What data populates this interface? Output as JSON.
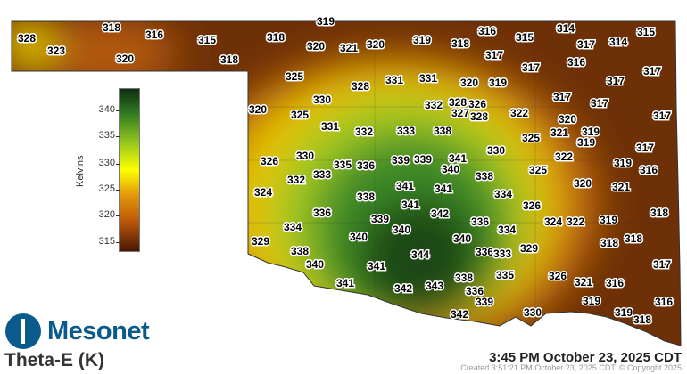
{
  "title": "Theta-E (K)",
  "logo_text": "Mesonet",
  "timestamp": "3:45 PM October 23, 2025 CDT",
  "created": "Created 3:51:21 PM October 23, 2025 CDT. © Copyright 2025",
  "colorbar": {
    "label": "Kelvins",
    "ticks": [
      "340",
      "335",
      "330",
      "325",
      "320",
      "315"
    ],
    "colors": [
      "#0f2e0f",
      "#2f7a22",
      "#8fc21e",
      "#ffff00",
      "#e39a0c",
      "#c25e0a",
      "#4a1604"
    ]
  },
  "stations": [
    "328",
    "323",
    "318",
    "316",
    "315",
    "320",
    "318",
    "319",
    "318",
    "320",
    "321",
    "320",
    "319",
    "318",
    "316",
    "315",
    "314",
    "317",
    "314",
    "315",
    "317",
    "317",
    "316",
    "317",
    "317",
    "325",
    "330",
    "328",
    "331",
    "331",
    "320",
    "319",
    "317",
    "317",
    "317",
    "320",
    "325",
    "331",
    "332",
    "333",
    "338",
    "332",
    "328",
    "326",
    "327",
    "328",
    "322",
    "320",
    "321",
    "319",
    "319",
    "325",
    "330",
    "341",
    "340",
    "339",
    "339",
    "330",
    "326",
    "335",
    "336",
    "332",
    "333",
    "338",
    "325",
    "322",
    "317",
    "319",
    "316",
    "324",
    "338",
    "341",
    "341",
    "334",
    "341",
    "326",
    "342",
    "336",
    "339",
    "336",
    "324",
    "322",
    "320",
    "321",
    "319",
    "318",
    "334",
    "340",
    "340",
    "334",
    "340",
    "329",
    "318",
    "318",
    "338",
    "344",
    "336",
    "333",
    "329",
    "340",
    "341",
    "335",
    "317",
    "341",
    "342",
    "343",
    "338",
    "336",
    "326",
    "321",
    "316",
    "339",
    "316",
    "319",
    "319",
    "342",
    "330",
    "318"
  ]
}
